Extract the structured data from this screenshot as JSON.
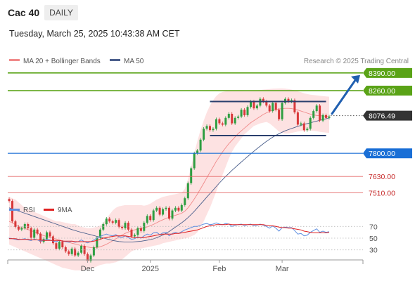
{
  "header": {
    "instrument": "Cac 40",
    "timeframe": "DAILY",
    "datetime": "Tuesday, March 25, 2025 10:43:38 AM CET"
  },
  "legend": {
    "ma20_bb": "MA 20 + Bollinger Bands",
    "ma50": "MA 50",
    "credit": "Research © 2025 Trading Central",
    "rsi": "RSI",
    "rsi_ma": "9MA"
  },
  "colors": {
    "resistance": "#5aa317",
    "support": "#1a6fd6",
    "level_line": "#e56a6a",
    "bollinger_fill": "#fde2e2",
    "ma20": "#f08a8a",
    "ma50": "#4b5f8c",
    "candle_up": "#2e9e41",
    "candle_down": "#d8383a",
    "rsi": "#5f8fe0",
    "rsi_ma": "#e02020",
    "arrow": "#1f5fb0",
    "price_tag": "#333333"
  },
  "chart_data": {
    "type": "candlestick",
    "price_range": [
      7440,
      8420
    ],
    "x_labels": [
      {
        "label": "Dec",
        "bar": 25
      },
      {
        "label": "2025",
        "bar": 45
      },
      {
        "label": "Feb",
        "bar": 67
      },
      {
        "label": "Mar",
        "bar": 87
      }
    ],
    "levels": [
      {
        "value": 8390.0,
        "label": "8390.00",
        "kind": "resistance"
      },
      {
        "value": 8260.0,
        "label": "8260.00",
        "kind": "resistance"
      },
      {
        "value": 8076.49,
        "label": "8076.49",
        "kind": "last"
      },
      {
        "value": 7800.0,
        "label": "7800.00",
        "kind": "support"
      },
      {
        "value": 7630.0,
        "label": "7630.00",
        "kind": "level"
      },
      {
        "value": 7510.0,
        "label": "7510.00",
        "kind": "level"
      }
    ],
    "channel": {
      "top": 8180,
      "bottom": 7930,
      "from_bar": 64,
      "to_bar": 101
    },
    "close": [
      7450,
      7300,
      7260,
      7240,
      7250,
      7280,
      7250,
      7180,
      7240,
      7210,
      7150,
      7170,
      7220,
      7190,
      7140,
      7100,
      7150,
      7110,
      7080,
      7060,
      7100,
      7050,
      7070,
      7120,
      7060,
      7010,
      7050,
      7110,
      7180,
      7240,
      7280,
      7320,
      7300,
      7290,
      7310,
      7260,
      7250,
      7290,
      7240,
      7190,
      7200,
      7250,
      7230,
      7290,
      7340,
      7310,
      7380,
      7400,
      7350,
      7390,
      7400,
      7320,
      7380,
      7400,
      7380,
      7420,
      7470,
      7580,
      7690,
      7800,
      7820,
      7900,
      7980,
      8000,
      7970,
      7980,
      8050,
      8020,
      8010,
      8060,
      8090,
      8020,
      8060,
      8070,
      8120,
      8080,
      8140,
      8180,
      8130,
      8150,
      8200,
      8180,
      8150,
      8110,
      8170,
      8120,
      8050,
      8170,
      8200,
      8180,
      8190,
      8100,
      8010,
      8020,
      7970,
      7980,
      8060,
      8110,
      8150,
      8040,
      8080,
      8060,
      8070
    ],
    "ma20": [
      7300,
      7290,
      7275,
      7265,
      7255,
      7248,
      7240,
      7232,
      7224,
      7214,
      7204,
      7196,
      7189,
      7182,
      7176,
      7170,
      7164,
      7158,
      7152,
      7146,
      7140,
      7134,
      7128,
      7122,
      7117,
      7112,
      7108,
      7106,
      7108,
      7114,
      7122,
      7132,
      7144,
      7158,
      7172,
      7186,
      7200,
      7212,
      7222,
      7230,
      7238,
      7244,
      7248,
      7252,
      7260,
      7268,
      7278,
      7290,
      7302,
      7312,
      7322,
      7330,
      7338,
      7345,
      7352,
      7360,
      7375,
      7400,
      7430,
      7465,
      7500,
      7540,
      7580,
      7620,
      7660,
      7700,
      7740,
      7775,
      7810,
      7840,
      7870,
      7895,
      7920,
      7945,
      7965,
      7985,
      8005,
      8025,
      8040,
      8055,
      8070,
      8085,
      8097,
      8107,
      8115,
      8121,
      8125,
      8128,
      8130,
      8130,
      8128,
      8124,
      8118,
      8110,
      8103,
      8095,
      8088,
      8082,
      8078,
      8076,
      8074,
      8072,
      8070
    ],
    "bb_upper": [
      7480,
      7470,
      7460,
      7440,
      7420,
      7400,
      7390,
      7380,
      7370,
      7360,
      7350,
      7340,
      7330,
      7320,
      7310,
      7300,
      7300,
      7295,
      7290,
      7285,
      7280,
      7280,
      7270,
      7260,
      7255,
      7250,
      7250,
      7255,
      7260,
      7270,
      7290,
      7320,
      7350,
      7380,
      7400,
      7410,
      7415,
      7420,
      7420,
      7420,
      7420,
      7420,
      7420,
      7415,
      7420,
      7430,
      7445,
      7460,
      7470,
      7480,
      7485,
      7490,
      7495,
      7500,
      7505,
      7510,
      7540,
      7610,
      7700,
      7800,
      7890,
      7970,
      8040,
      8100,
      8150,
      8190,
      8220,
      8240,
      8250,
      8255,
      8260,
      8260,
      8260,
      8260,
      8258,
      8255,
      8255,
      8257,
      8260,
      8262,
      8265,
      8268,
      8270,
      8272,
      8274,
      8275,
      8276,
      8276,
      8275,
      8272,
      8268,
      8262,
      8255,
      8248,
      8240,
      8235,
      8230,
      8228,
      8225,
      8222,
      8220,
      8218,
      8216
    ],
    "bb_lower": [
      7130,
      7120,
      7110,
      7100,
      7090,
      7080,
      7070,
      7060,
      7050,
      7040,
      7030,
      7020,
      7010,
      7000,
      6990,
      6980,
      6970,
      6960,
      6955,
      6950,
      6945,
      6940,
      6940,
      6940,
      6945,
      6950,
      6955,
      6960,
      6970,
      6980,
      6985,
      6990,
      6990,
      6995,
      7000,
      7010,
      7020,
      7040,
      7060,
      7080,
      7090,
      7095,
      7100,
      7105,
      7110,
      7115,
      7120,
      7125,
      7130,
      7140,
      7145,
      7150,
      7155,
      7160,
      7165,
      7170,
      7175,
      7180,
      7190,
      7200,
      7220,
      7260,
      7300,
      7350,
      7400,
      7460,
      7520,
      7580,
      7640,
      7700,
      7760,
      7810,
      7850,
      7880,
      7910,
      7940,
      7960,
      7980,
      8000,
      8010,
      8020,
      8025,
      8030,
      8020,
      8000,
      7980,
      7960,
      7950,
      7945,
      7945,
      7950,
      7955,
      7960,
      7962,
      7964,
      7966,
      7966,
      7965,
      7962,
      7958,
      7955,
      7952,
      7950
    ],
    "ma50": [
      7400,
      7392,
      7384,
      7376,
      7368,
      7360,
      7352,
      7344,
      7336,
      7328,
      7320,
      7312,
      7304,
      7296,
      7288,
      7280,
      7272,
      7264,
      7256,
      7248,
      7240,
      7233,
      7226,
      7220,
      7214,
      7208,
      7202,
      7196,
      7190,
      7184,
      7178,
      7172,
      7166,
      7160,
      7156,
      7152,
      7150,
      7148,
      7148,
      7148,
      7150,
      7152,
      7154,
      7158,
      7162,
      7166,
      7172,
      7180,
      7190,
      7200,
      7212,
      7226,
      7242,
      7258,
      7274,
      7290,
      7308,
      7328,
      7350,
      7374,
      7400,
      7426,
      7452,
      7478,
      7504,
      7530,
      7556,
      7582,
      7606,
      7630,
      7652,
      7674,
      7695,
      7716,
      7736,
      7756,
      7776,
      7796,
      7815,
      7834,
      7852,
      7870,
      7887,
      7903,
      7918,
      7932,
      7944,
      7955,
      7965,
      7974,
      7982,
      7990,
      7998,
      8005,
      8012,
      8018,
      8024,
      8030,
      8036,
      8042,
      8048,
      8054,
      8060
    ],
    "rsi_scale": [
      30,
      50,
      70
    ],
    "rsi_range": [
      20,
      80
    ],
    "rsi": [
      50,
      49,
      48,
      47,
      48,
      49,
      47,
      46,
      48,
      47,
      45,
      46,
      48,
      47,
      45,
      44,
      46,
      45,
      44,
      43,
      45,
      43,
      44,
      47,
      44,
      42,
      44,
      47,
      50,
      53,
      55,
      57,
      55,
      54,
      56,
      52,
      51,
      54,
      51,
      48,
      49,
      52,
      50,
      54,
      57,
      55,
      59,
      60,
      56,
      59,
      60,
      54,
      58,
      60,
      58,
      61,
      64,
      66,
      68,
      70,
      70,
      72,
      74,
      75,
      73,
      74,
      76,
      74,
      73,
      75,
      74,
      70,
      72,
      73,
      74,
      71,
      73,
      74,
      71,
      72,
      74,
      72,
      70,
      67,
      71,
      67,
      62,
      68,
      69,
      68,
      68,
      63,
      57,
      58,
      54,
      55,
      60,
      63,
      66,
      60,
      62,
      60,
      61
    ],
    "rsi_ma": [
      49,
      49,
      49,
      48,
      48,
      48,
      48,
      47,
      47,
      47,
      47,
      46,
      46,
      46,
      46,
      46,
      46,
      45,
      45,
      45,
      45,
      44,
      44,
      44,
      44,
      44,
      44,
      45,
      46,
      48,
      50,
      51,
      52,
      53,
      54,
      54,
      54,
      54,
      53,
      52,
      51,
      51,
      51,
      51,
      52,
      53,
      54,
      55,
      56,
      57,
      57,
      57,
      57,
      58,
      58,
      59,
      60,
      61,
      62,
      63,
      64,
      66,
      68,
      70,
      71,
      72,
      73,
      73,
      73,
      73,
      74,
      73,
      73,
      73,
      73,
      73,
      73,
      73,
      73,
      73,
      73,
      73,
      72,
      71,
      71,
      70,
      69,
      68,
      68,
      67,
      67,
      66,
      65,
      64,
      62,
      61,
      60,
      59,
      59,
      59,
      59,
      59,
      60
    ]
  }
}
